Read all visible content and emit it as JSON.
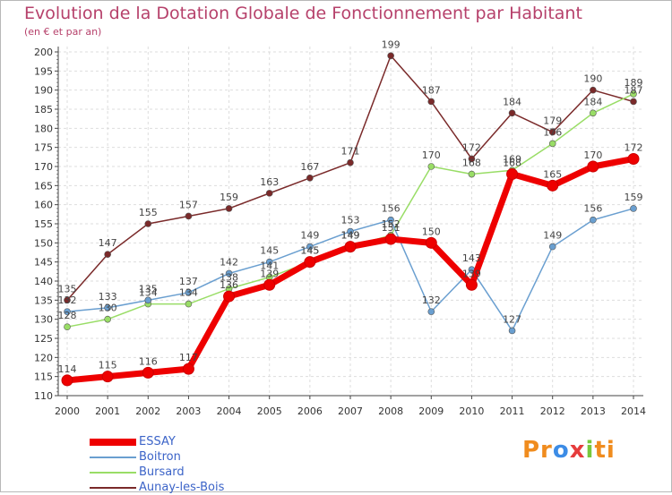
{
  "title": "Evolution de la Dotation Globale de Fonctionnement par Habitant",
  "subtitle": "(en € et par an)",
  "logo": "Proxiti",
  "chart_data": {
    "type": "line",
    "title": "Evolution de la Dotation Globale de Fonctionnement par Habitant",
    "subtitle": "(en € et par an)",
    "x": [
      2000,
      2001,
      2002,
      2003,
      2004,
      2005,
      2006,
      2007,
      2008,
      2009,
      2010,
      2011,
      2012,
      2013,
      2014
    ],
    "ylim": [
      110,
      200
    ],
    "yticks": [
      110,
      115,
      120,
      125,
      130,
      135,
      140,
      145,
      150,
      155,
      160,
      165,
      170,
      175,
      180,
      185,
      190,
      195,
      200
    ],
    "grid": true,
    "legend_position": "bottom-left",
    "series": [
      {
        "name": "ESSAY",
        "color": "#ee0000",
        "values": [
          114,
          115,
          116,
          117,
          136,
          139,
          145,
          149,
          151,
          150,
          139,
          168,
          165,
          170,
          172
        ]
      },
      {
        "name": "Boitron",
        "color": "#6a9fd0",
        "values": [
          132,
          133,
          135,
          137,
          142,
          145,
          149,
          153,
          156,
          132,
          143,
          127,
          149,
          156,
          159
        ]
      },
      {
        "name": "Bursard",
        "color": "#99dd66",
        "values": [
          128,
          130,
          134,
          134,
          138,
          141,
          145,
          149,
          152,
          170,
          168,
          169,
          176,
          184,
          189
        ]
      },
      {
        "name": "Aunay-les-Bois",
        "color": "#7a2a2a",
        "values": [
          135,
          147,
          155,
          157,
          159,
          163,
          167,
          171,
          199,
          187,
          172,
          184,
          179,
          190,
          187
        ]
      }
    ]
  }
}
